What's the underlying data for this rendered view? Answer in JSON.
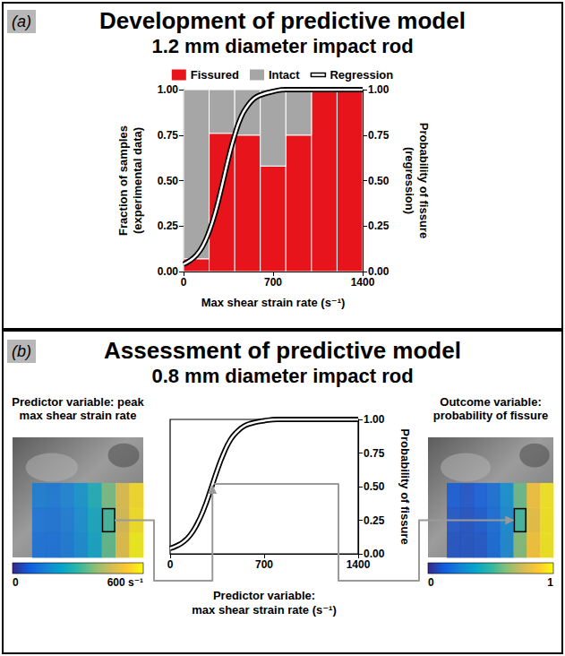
{
  "chart_data": [
    {
      "type": "bar",
      "panel": "(a)",
      "title": "Development of predictive model",
      "subtitle": "1.2 mm diameter impact rod",
      "bins": [
        0,
        200,
        400,
        600,
        800,
        1000,
        1200,
        1400
      ],
      "series": [
        {
          "name": "Fissured",
          "color": "#e8141c",
          "values": [
            0.07,
            0.76,
            0.75,
            0.58,
            0.75,
            1,
            1
          ]
        },
        {
          "name": "Intact",
          "color": "#a6a6a6",
          "values": [
            0.93,
            0.24,
            0.25,
            0.42,
            0.25,
            0,
            0
          ]
        },
        {
          "name": "Regression",
          "type": "line",
          "axis": "y2",
          "color": "#ffffff",
          "x": [
            0,
            50,
            100,
            150,
            200,
            250,
            300,
            350,
            400,
            450,
            500,
            550,
            600,
            700,
            800,
            900,
            1000,
            1200,
            1400
          ],
          "values": [
            0.04,
            0.06,
            0.09,
            0.14,
            0.22,
            0.33,
            0.47,
            0.62,
            0.75,
            0.85,
            0.91,
            0.95,
            0.97,
            0.99,
            1,
            1,
            1,
            1,
            1
          ]
        }
      ],
      "stacked": true,
      "grid": false,
      "legend": "top",
      "xlabel": "Max shear strain rate (s⁻¹)",
      "ylabel": "Fraction of samples (experimental data)",
      "y2label": "Probability of fissure (regression)",
      "xlim": [
        0,
        1400
      ],
      "xticks": [
        0,
        700,
        1400
      ],
      "ylim": [
        0,
        1
      ],
      "yticks": [
        {
          "value": 0,
          "label": "0.00"
        },
        {
          "value": 0.25,
          "label": "0.25"
        },
        {
          "value": 0.5,
          "label": "0.50"
        },
        {
          "value": 0.75,
          "label": "0.75"
        },
        {
          "value": 1,
          "label": "1.00"
        }
      ],
      "y2lim": [
        0,
        1
      ],
      "y2ticks": [
        {
          "value": 0,
          "label": "0.00"
        },
        {
          "value": 0.25,
          "label": "0.25"
        },
        {
          "value": 0.5,
          "label": "0.50"
        },
        {
          "value": 0.75,
          "label": "0.75"
        },
        {
          "value": 1,
          "label": "1.00"
        }
      ]
    },
    {
      "type": "line",
      "panel": "(b)",
      "title": "Assessment of predictive model",
      "subtitle": "0.8 mm diameter impact rod",
      "series": [
        {
          "axis": "y2",
          "color": "#ffffff",
          "x": [
            0,
            50,
            100,
            150,
            200,
            250,
            300,
            350,
            400,
            450,
            500,
            550,
            600,
            700,
            800,
            900,
            1000,
            1200,
            1400
          ],
          "values": [
            0.04,
            0.06,
            0.09,
            0.14,
            0.22,
            0.33,
            0.47,
            0.62,
            0.75,
            0.85,
            0.91,
            0.95,
            0.97,
            0.99,
            1,
            1,
            1,
            1,
            1
          ]
        }
      ],
      "grid": false,
      "xlabel": "Predictor variable: max shear strain rate (s⁻¹)",
      "y2label": "Probability of fissure",
      "xlim": [
        0,
        1400
      ],
      "xticks": [
        0,
        700,
        1400
      ],
      "y2lim": [
        0,
        1
      ],
      "y2ticks": [
        {
          "value": 0,
          "label": "0.00"
        },
        {
          "value": 0.25,
          "label": "0.25"
        },
        {
          "value": 0.5,
          "label": "0.50"
        },
        {
          "value": 0.75,
          "label": "0.75"
        },
        {
          "value": 1,
          "label": "1.00"
        }
      ],
      "probe": {
        "x": 315,
        "y": 0.52
      },
      "heatmaps": [
        {
          "title": "Predictor variable: peak max shear strain rate",
          "cells": [
            [
              140,
              130,
              150,
              190,
              260,
              360,
              480,
              560
            ],
            [
              120,
              115,
              135,
              175,
              240,
              315,
              470,
              570
            ],
            [
              110,
              110,
              130,
              170,
              230,
              340,
              490,
              590
            ]
          ],
          "colorbar_range": [
            0,
            600
          ],
          "colorbar_ticks": [
            0,
            {
              "value": 600,
              "label": "600 s⁻¹"
            }
          ]
        },
        {
          "title": "Outcome variable: probability of fissure",
          "cells": [
            [
              0.12,
              0.1,
              0.13,
              0.18,
              0.3,
              0.58,
              0.86,
              0.96
            ],
            [
              0.1,
              0.09,
              0.11,
              0.17,
              0.28,
              0.52,
              0.84,
              0.96
            ],
            [
              0.09,
              0.09,
              0.1,
              0.16,
              0.27,
              0.62,
              0.88,
              0.97
            ]
          ],
          "colorbar_range": [
            0,
            1
          ],
          "colorbar_ticks": [
            0,
            1
          ]
        }
      ]
    }
  ]
}
